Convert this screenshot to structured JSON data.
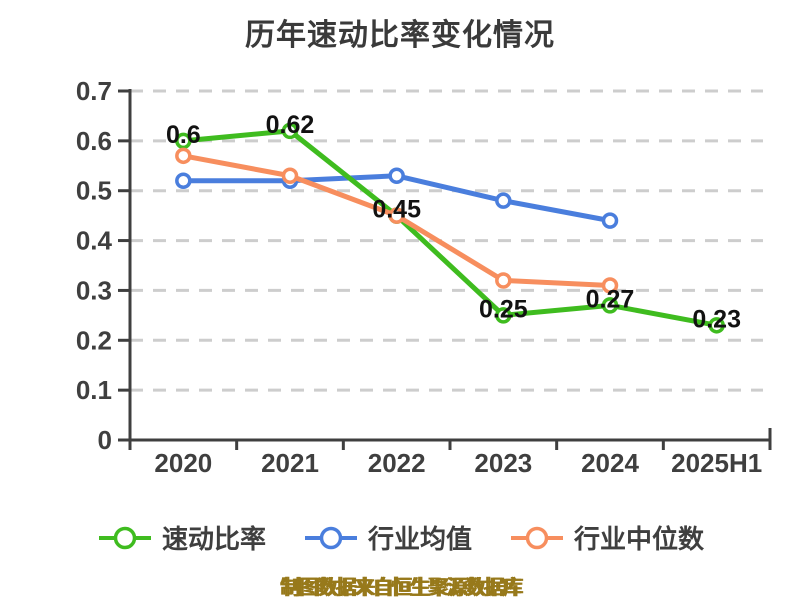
{
  "chart_data": {
    "type": "line",
    "title": "历年速动比率变化情况",
    "source_note": "制图数据来自恒生聚源数据库",
    "categories": [
      "2020",
      "2021",
      "2022",
      "2023",
      "2024",
      "2025H1"
    ],
    "y_ticks": [
      "0",
      "0.1",
      "0.2",
      "0.3",
      "0.4",
      "0.5",
      "0.6",
      "0.7"
    ],
    "ylim": [
      0,
      0.7
    ],
    "grid": "horizontal-dashed",
    "legend_position": "bottom",
    "series": [
      {
        "name": "速动比率",
        "color": "#3fbc1f",
        "values": [
          0.6,
          0.62,
          0.45,
          0.25,
          0.27,
          0.23
        ],
        "labels": [
          "0.6",
          "0.62",
          "0.45",
          "0.25",
          "0.27",
          "0.23"
        ],
        "show_labels": true
      },
      {
        "name": "行业均值",
        "color": "#4a7edd",
        "values": [
          0.52,
          0.52,
          0.53,
          0.48,
          0.44
        ],
        "show_labels": false
      },
      {
        "name": "行业中位数",
        "color": "#f78e5e",
        "values": [
          0.57,
          0.53,
          0.45,
          0.32,
          0.31
        ],
        "show_labels": false
      }
    ],
    "colors": {
      "axis": "#3f3f3f",
      "grid": "#cdcdcd",
      "data_label": "#121212",
      "title": "#3a3a3a",
      "source": "#97791b"
    }
  }
}
